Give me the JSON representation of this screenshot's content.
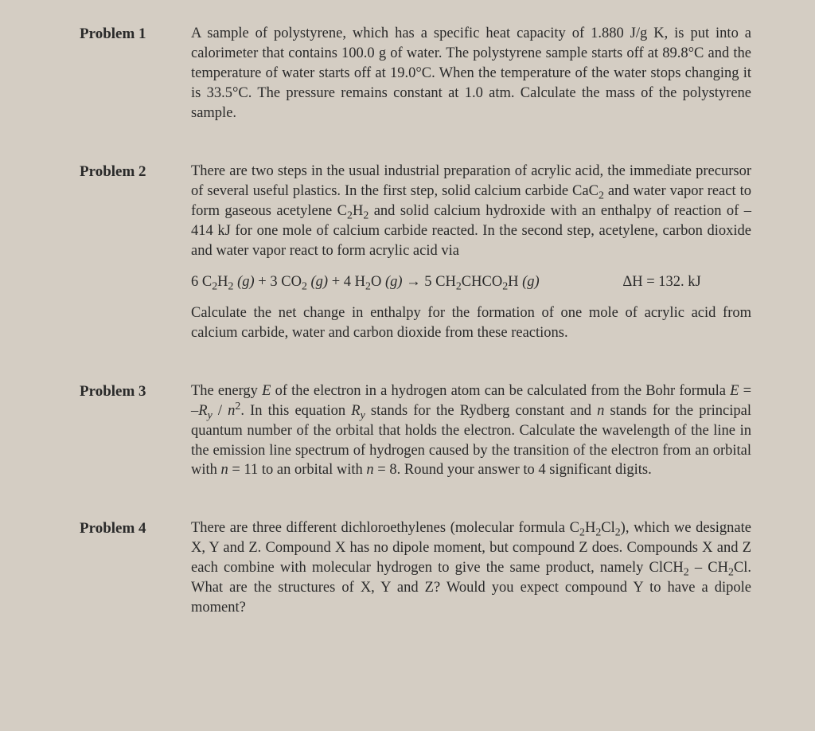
{
  "page": {
    "background_color": "#d4cdc3",
    "text_color": "#2a2a2a",
    "font_family": "Times New Roman",
    "base_fontsize": 18.5
  },
  "problems": [
    {
      "label": "Problem 1",
      "paragraphs": [
        "A sample of polystyrene, which has a specific heat capacity of 1.880 J/g K, is put into a calorimeter that contains 100.0 g of water. The polystyrene sample starts off at 89.8°C and the temperature of water starts off at 19.0°C. When the temperature of the water stops changing it is 33.5°C. The pressure remains constant at 1.0 atm. Calculate the mass of the polystyrene sample."
      ]
    },
    {
      "label": "Problem 2",
      "paragraphs": [
        "There are two steps in the usual industrial preparation of acrylic acid, the immediate precursor of several useful plastics. In the first step, solid calcium carbide CaC₂ and water vapor react to form gaseous acetylene C₂H₂ and solid calcium hydroxide with an enthalpy of reaction of −414 kJ for one mole of calcium carbide reacted. In the second step, acetylene, carbon dioxide and water vapor react to form acrylic acid via",
        "Calculate the net change in enthalpy for the formation of one mole of acrylic acid from calcium carbide, water and carbon dioxide from these reactions."
      ],
      "equation": {
        "left": "6 C₂H₂ (g) + 3 CO₂ (g) + 4 H₂O (g) → 5 CH₂CHCO₂H (g)",
        "right": "ΔH = 132. kJ"
      }
    },
    {
      "label": "Problem 3",
      "paragraphs": [
        "The energy E of the electron in a hydrogen atom can be calculated from the Bohr formula E = −Rᵧ / n². In this equation Rᵧ stands for the Rydberg constant and n stands for the principal quantum number of the orbital that holds the electron. Calculate the wavelength of the line in the emission line spectrum of hydrogen caused by the transition of the electron from an orbital with n = 11 to an orbital with n = 8. Round your answer to 4 significant digits."
      ]
    },
    {
      "label": "Problem 4",
      "paragraphs": [
        "There are three different dichloroethylenes (molecular formula C₂H₂Cl₂), which we designate X, Y and Z. Compound X has no dipole moment, but compound Z does. Compounds X and Z each combine with molecular hydrogen to give the same product, namely ClCH₂ – CH₂Cl. What are the structures of X, Y and Z? Would you expect compound Y to have a dipole moment?"
      ]
    }
  ]
}
